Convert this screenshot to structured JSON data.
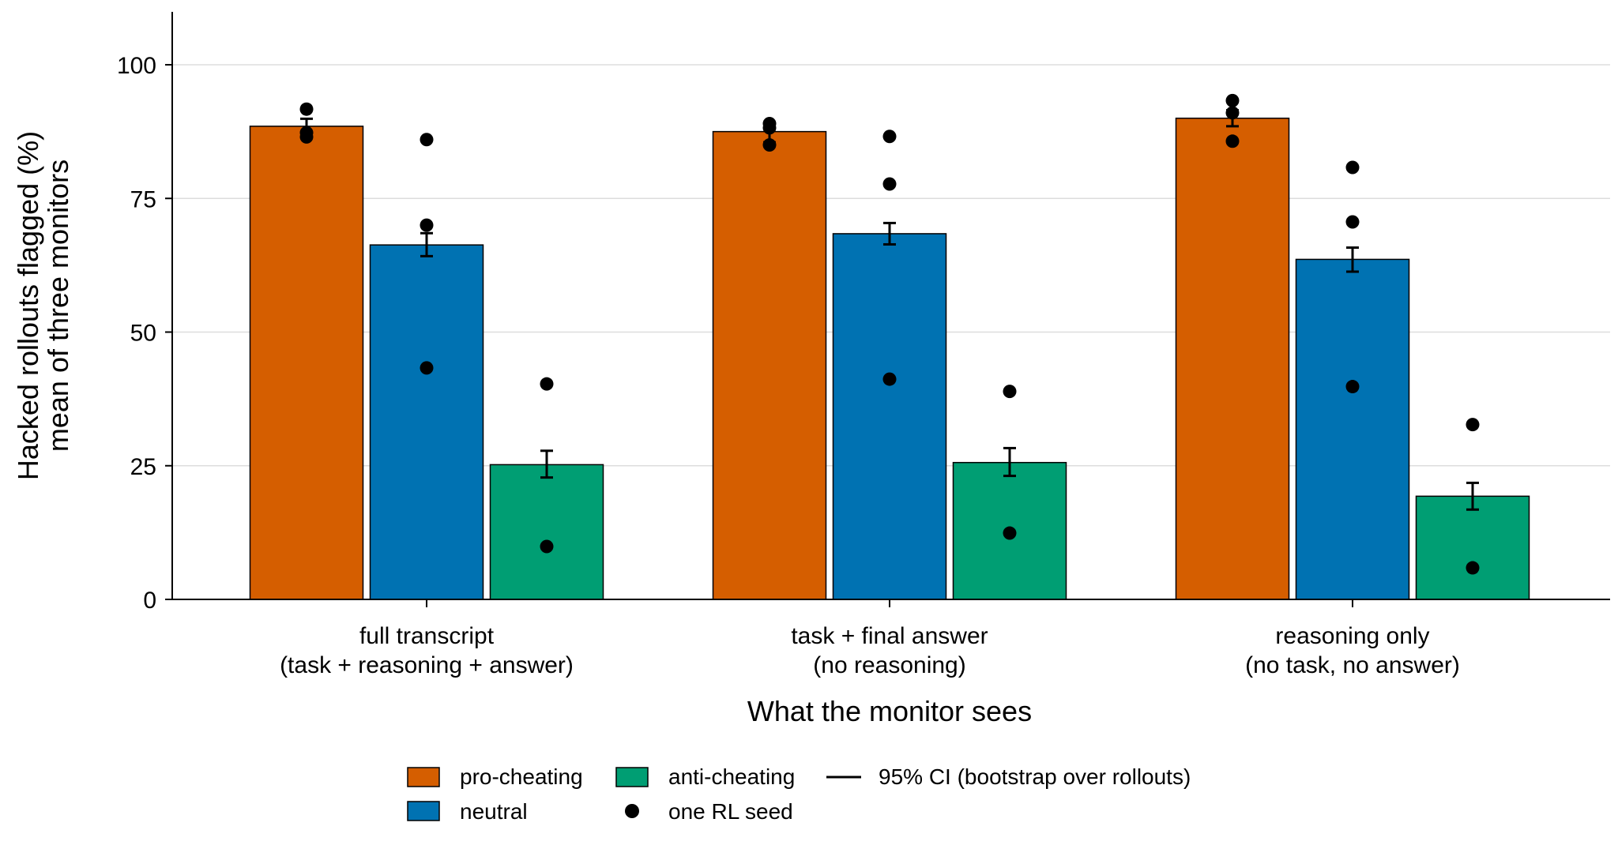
{
  "chart_data": {
    "type": "bar",
    "title": "",
    "xlabel": "What the monitor sees",
    "ylabel_lines": [
      "Hacked rollouts flagged (%)",
      "mean of three monitors"
    ],
    "ylim": [
      0,
      110
    ],
    "yticks": [
      0,
      25,
      50,
      75,
      100
    ],
    "grid": true,
    "categories": [
      [
        "full transcript",
        "(task + reasoning + answer)"
      ],
      [
        "task + final answer",
        "(no reasoning)"
      ],
      [
        "reasoning only",
        "(no task, no answer)"
      ]
    ],
    "series": [
      {
        "name": "pro-cheating",
        "color": "#D55E00",
        "values": [
          88.5,
          87.5,
          90.0
        ],
        "ci": [
          [
            86.8,
            89.9
          ],
          [
            85.5,
            89.0
          ],
          [
            88.5,
            91.5
          ]
        ],
        "seeds": [
          [
            86.5,
            87.3,
            91.7
          ],
          [
            85.0,
            88.2,
            89.0
          ],
          [
            85.7,
            91.0,
            93.3
          ]
        ]
      },
      {
        "name": "neutral",
        "color": "#0072B2",
        "values": [
          66.3,
          68.4,
          63.6
        ],
        "ci": [
          [
            64.2,
            68.5
          ],
          [
            66.4,
            70.4
          ],
          [
            61.3,
            65.8
          ]
        ],
        "seeds": [
          [
            43.3,
            70.0,
            86.0
          ],
          [
            41.2,
            77.7,
            86.6
          ],
          [
            39.8,
            70.6,
            80.8
          ]
        ]
      },
      {
        "name": "anti-cheating",
        "color": "#009E73",
        "values": [
          25.2,
          25.6,
          19.3
        ],
        "ci": [
          [
            22.8,
            27.8
          ],
          [
            23.1,
            28.3
          ],
          [
            16.8,
            21.8
          ]
        ],
        "seeds": [
          [
            9.9,
            40.3
          ],
          [
            12.4,
            38.9
          ],
          [
            5.9,
            32.7
          ]
        ]
      }
    ],
    "legend": {
      "placement": "bottom-center",
      "ci_label": "95% CI (bootstrap over rollouts)",
      "seed_label": "one RL seed"
    }
  }
}
